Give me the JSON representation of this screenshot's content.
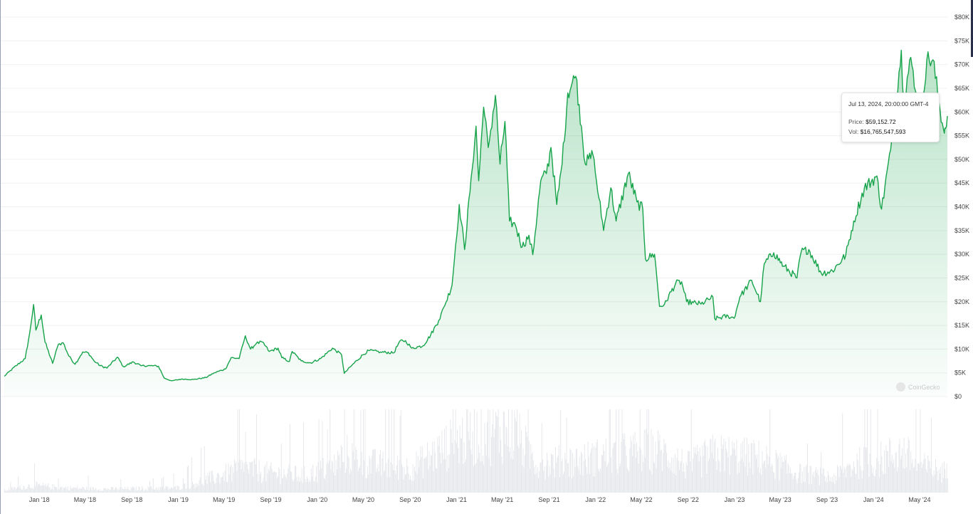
{
  "chart_data": {
    "type": "area",
    "title": "",
    "y_axis": {
      "ticks": [
        "$0",
        "$5K",
        "$10K",
        "$15K",
        "$20K",
        "$25K",
        "$30K",
        "$35K",
        "$40K",
        "$45K",
        "$50K",
        "$55K",
        "$60K",
        "$65K",
        "$70K",
        "$75K",
        "$80K"
      ],
      "ylim": [
        0,
        80000
      ],
      "position": "right",
      "grid": true
    },
    "x_axis": {
      "ticks": [
        "Jan '18",
        "May '18",
        "Sep '18",
        "Jan '19",
        "May '19",
        "Sep '19",
        "Jan '20",
        "May '20",
        "Sep '20",
        "Jan '21",
        "May '21",
        "Sep '21",
        "Jan '22",
        "May '22",
        "Sep '22",
        "Jan '23",
        "May '23",
        "Sep '23",
        "Jan '24",
        "May '24"
      ],
      "tick_dates": [
        "2018-01-01",
        "2018-05-01",
        "2018-09-01",
        "2019-01-01",
        "2019-05-01",
        "2019-09-01",
        "2020-01-01",
        "2020-05-01",
        "2020-09-01",
        "2021-01-01",
        "2021-05-01",
        "2021-09-01",
        "2022-01-01",
        "2022-05-01",
        "2022-09-01",
        "2023-01-01",
        "2023-05-01",
        "2023-09-01",
        "2024-01-01",
        "2024-05-01"
      ],
      "range": [
        "2017-10-01",
        "2024-07-13"
      ]
    },
    "series": [
      {
        "role": "price",
        "color": "#16a34a",
        "fill_color": "#c8ecd3",
        "points": [
          [
            "2017-10-01",
            4300
          ],
          [
            "2017-11-01",
            6500
          ],
          [
            "2017-11-25",
            8000
          ],
          [
            "2017-12-07",
            13500
          ],
          [
            "2017-12-17",
            19400
          ],
          [
            "2017-12-23",
            14000
          ],
          [
            "2018-01-06",
            17200
          ],
          [
            "2018-01-16",
            11500
          ],
          [
            "2018-02-05",
            7000
          ],
          [
            "2018-02-20",
            11000
          ],
          [
            "2018-03-05",
            11300
          ],
          [
            "2018-03-20",
            8500
          ],
          [
            "2018-04-05",
            6800
          ],
          [
            "2018-04-25",
            9400
          ],
          [
            "2018-05-10",
            9200
          ],
          [
            "2018-05-25",
            7500
          ],
          [
            "2018-06-10",
            6500
          ],
          [
            "2018-06-28",
            6000
          ],
          [
            "2018-07-25",
            8300
          ],
          [
            "2018-08-10",
            6300
          ],
          [
            "2018-09-05",
            7300
          ],
          [
            "2018-09-25",
            6500
          ],
          [
            "2018-10-20",
            6500
          ],
          [
            "2018-11-10",
            6400
          ],
          [
            "2018-11-25",
            3900
          ],
          [
            "2018-12-15",
            3300
          ],
          [
            "2019-01-10",
            3700
          ],
          [
            "2019-02-10",
            3600
          ],
          [
            "2019-03-15",
            4000
          ],
          [
            "2019-04-05",
            5000
          ],
          [
            "2019-05-05",
            5800
          ],
          [
            "2019-05-20",
            8200
          ],
          [
            "2019-06-10",
            8000
          ],
          [
            "2019-06-26",
            12800
          ],
          [
            "2019-07-10",
            10000
          ],
          [
            "2019-07-25",
            11200
          ],
          [
            "2019-08-10",
            11500
          ],
          [
            "2019-08-28",
            9500
          ],
          [
            "2019-09-20",
            10200
          ],
          [
            "2019-09-30",
            8200
          ],
          [
            "2019-10-20",
            7400
          ],
          [
            "2019-10-27",
            9500
          ],
          [
            "2019-11-20",
            7500
          ],
          [
            "2019-12-15",
            7100
          ],
          [
            "2020-01-10",
            8000
          ],
          [
            "2020-02-10",
            10200
          ],
          [
            "2020-03-05",
            8800
          ],
          [
            "2020-03-12",
            4900
          ],
          [
            "2020-04-01",
            6600
          ],
          [
            "2020-04-30",
            8800
          ],
          [
            "2020-05-15",
            9700
          ],
          [
            "2020-06-15",
            9400
          ],
          [
            "2020-07-20",
            9200
          ],
          [
            "2020-08-05",
            11700
          ],
          [
            "2020-08-20",
            11800
          ],
          [
            "2020-09-05",
            10200
          ],
          [
            "2020-10-05",
            10700
          ],
          [
            "2020-10-25",
            13000
          ],
          [
            "2020-11-15",
            16000
          ],
          [
            "2020-12-01",
            19200
          ],
          [
            "2020-12-20",
            23500
          ],
          [
            "2021-01-08",
            40500
          ],
          [
            "2021-01-22",
            31000
          ],
          [
            "2021-02-08",
            46000
          ],
          [
            "2021-02-21",
            57000
          ],
          [
            "2021-02-28",
            45500
          ],
          [
            "2021-03-13",
            61000
          ],
          [
            "2021-03-25",
            52500
          ],
          [
            "2021-04-13",
            63500
          ],
          [
            "2021-04-25",
            49000
          ],
          [
            "2021-05-08",
            58000
          ],
          [
            "2021-05-20",
            37000
          ],
          [
            "2021-06-05",
            36000
          ],
          [
            "2021-06-22",
            31500
          ],
          [
            "2021-07-10",
            34000
          ],
          [
            "2021-07-20",
            29900
          ],
          [
            "2021-08-10",
            45500
          ],
          [
            "2021-08-25",
            47000
          ],
          [
            "2021-09-06",
            52500
          ],
          [
            "2021-09-21",
            40500
          ],
          [
            "2021-10-05",
            49000
          ],
          [
            "2021-10-20",
            64000
          ],
          [
            "2021-11-10",
            67500
          ],
          [
            "2021-11-25",
            57000
          ],
          [
            "2021-12-05",
            49000
          ],
          [
            "2021-12-25",
            51000
          ],
          [
            "2022-01-10",
            41800
          ],
          [
            "2022-01-22",
            35000
          ],
          [
            "2022-02-10",
            44000
          ],
          [
            "2022-02-24",
            37000
          ],
          [
            "2022-03-28",
            47000
          ],
          [
            "2022-04-20",
            41000
          ],
          [
            "2022-05-05",
            39500
          ],
          [
            "2022-05-12",
            29000
          ],
          [
            "2022-06-05",
            30000
          ],
          [
            "2022-06-18",
            19000
          ],
          [
            "2022-07-01",
            19500
          ],
          [
            "2022-07-30",
            23800
          ],
          [
            "2022-08-15",
            24200
          ],
          [
            "2022-08-28",
            20000
          ],
          [
            "2022-09-15",
            19800
          ],
          [
            "2022-10-05",
            19500
          ],
          [
            "2022-11-05",
            21000
          ],
          [
            "2022-11-10",
            16400
          ],
          [
            "2022-12-15",
            17000
          ],
          [
            "2022-12-31",
            16500
          ],
          [
            "2023-01-15",
            21000
          ],
          [
            "2023-02-15",
            24500
          ],
          [
            "2023-03-10",
            20000
          ],
          [
            "2023-03-20",
            28000
          ],
          [
            "2023-04-14",
            30300
          ],
          [
            "2023-05-10",
            27500
          ],
          [
            "2023-06-14",
            25000
          ],
          [
            "2023-06-25",
            30500
          ],
          [
            "2023-07-15",
            31000
          ],
          [
            "2023-08-17",
            26000
          ],
          [
            "2023-09-15",
            26500
          ],
          [
            "2023-10-20",
            29800
          ],
          [
            "2023-11-10",
            37000
          ],
          [
            "2023-12-08",
            44000
          ],
          [
            "2024-01-10",
            46500
          ],
          [
            "2024-01-22",
            39500
          ],
          [
            "2024-02-15",
            52000
          ],
          [
            "2024-02-28",
            62000
          ],
          [
            "2024-03-14",
            73000
          ],
          [
            "2024-03-20",
            62500
          ],
          [
            "2024-04-08",
            71500
          ],
          [
            "2024-04-20",
            64500
          ],
          [
            "2024-05-01",
            57500
          ],
          [
            "2024-05-20",
            71000
          ],
          [
            "2024-06-05",
            71000
          ],
          [
            "2024-06-24",
            60300
          ],
          [
            "2024-07-05",
            55500
          ],
          [
            "2024-07-08",
            56500
          ],
          [
            "2024-07-13",
            59152.72
          ]
        ]
      },
      {
        "role": "volume",
        "color": "#e6e8ec",
        "points": [
          [
            "2017-10-01",
            1.0
          ],
          [
            "2017-12-15",
            3.0
          ],
          [
            "2018-03-01",
            2.0
          ],
          [
            "2018-07-01",
            1.5
          ],
          [
            "2018-11-01",
            1.8
          ],
          [
            "2019-01-01",
            2.0
          ],
          [
            "2019-04-01",
            6.0
          ],
          [
            "2019-06-20",
            10.0
          ],
          [
            "2019-09-01",
            8.0
          ],
          [
            "2019-12-01",
            7.0
          ],
          [
            "2020-02-15",
            11.0
          ],
          [
            "2020-03-12",
            16.0
          ],
          [
            "2020-05-15",
            12.0
          ],
          [
            "2020-09-01",
            10.0
          ],
          [
            "2021-01-10",
            22.0
          ],
          [
            "2021-03-01",
            24.0
          ],
          [
            "2021-05-20",
            26.0
          ],
          [
            "2021-08-01",
            12.0
          ],
          [
            "2021-11-10",
            13.0
          ],
          [
            "2022-01-22",
            15.0
          ],
          [
            "2022-05-12",
            17.0
          ],
          [
            "2022-06-18",
            17.0
          ],
          [
            "2022-09-01",
            11.0
          ],
          [
            "2022-11-10",
            16.0
          ],
          [
            "2023-03-15",
            14.0
          ],
          [
            "2023-06-15",
            8.0
          ],
          [
            "2023-09-15",
            6.0
          ],
          [
            "2023-11-15",
            12.0
          ],
          [
            "2024-01-10",
            13.0
          ],
          [
            "2024-03-14",
            17.0
          ],
          [
            "2024-05-01",
            11.0
          ],
          [
            "2024-07-13",
            8.0
          ]
        ]
      }
    ],
    "tooltip": {
      "date": "Jul 13, 2024, 20:00:00 GMT-4",
      "price_label": "Price:",
      "price": "$59,152.72",
      "vol_label": "Vol:",
      "vol": "$16,765,547,593"
    },
    "watermark": "CoinGecko"
  }
}
